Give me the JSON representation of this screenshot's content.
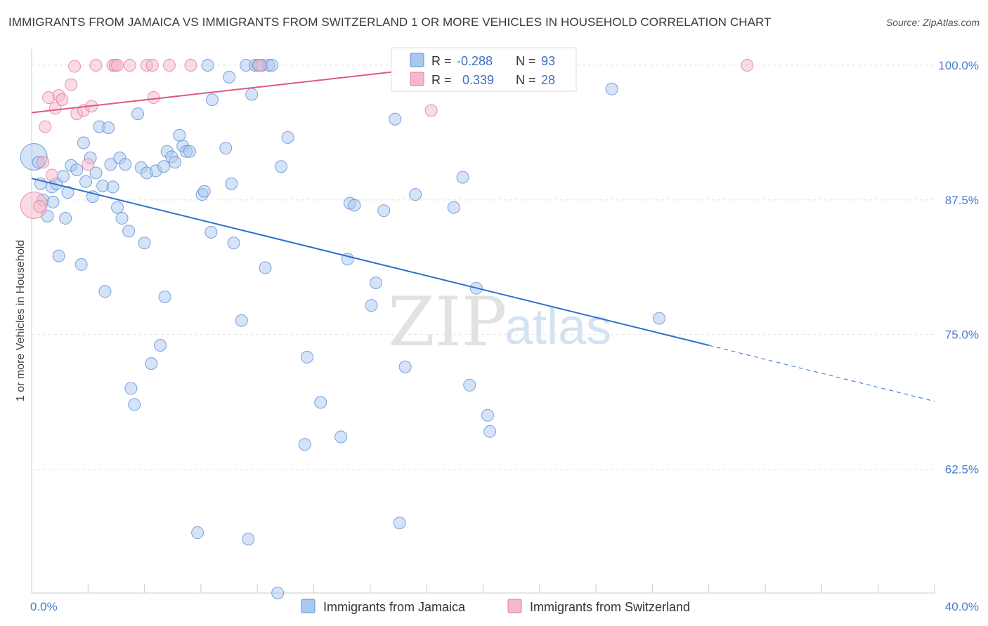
{
  "header": {
    "title": "IMMIGRANTS FROM JAMAICA VS IMMIGRANTS FROM SWITZERLAND 1 OR MORE VEHICLES IN HOUSEHOLD CORRELATION CHART",
    "source": "Source: ZipAtlas.com"
  },
  "watermark": {
    "zip": "ZIP",
    "atlas": "atlas"
  },
  "colors": {
    "jamaica_fill": "#a9c8ee",
    "jamaica_stroke": "#5b8fd6",
    "jamaica_line": "#2f6fcf",
    "swiss_fill": "#f5b8ca",
    "swiss_stroke": "#e07c9c",
    "swiss_line": "#e0588a",
    "tick_text": "#4a7bd0",
    "grid": "#e2e2e2"
  },
  "legend": {
    "row1": {
      "r_label": "R =",
      "r_value": "-0.288",
      "n_label": "N =",
      "n_value": "93"
    },
    "row2": {
      "r_label": "R =",
      "r_value": "0.339",
      "n_label": "N =",
      "n_value": "28"
    }
  },
  "chart_data": {
    "type": "scatter",
    "title": "IMMIGRANTS FROM JAMAICA VS IMMIGRANTS FROM SWITZERLAND 1 OR MORE VEHICLES IN HOUSEHOLD CORRELATION CHART",
    "xlabel": "",
    "ylabel": "1 or more Vehicles in Household",
    "xlim": [
      0,
      40
    ],
    "ylim": [
      51,
      101.5
    ],
    "x_tick_labels": [
      {
        "value": 0,
        "label": "0.0%"
      },
      {
        "value": 40,
        "label": "40.0%"
      }
    ],
    "y_tick_labels": [
      {
        "value": 100,
        "label": "100.0%"
      },
      {
        "value": 87.5,
        "label": "87.5%"
      },
      {
        "value": 75,
        "label": "75.0%"
      },
      {
        "value": 62.5,
        "label": "62.5%"
      }
    ],
    "grid": true,
    "legend_position": "top-center",
    "series": [
      {
        "name": "Immigrants from Jamaica",
        "r": -0.288,
        "n": 93,
        "trend": {
          "x0": 0,
          "y0": 89.5,
          "x1": 30,
          "y1": 74.0,
          "x_dash_end": 40,
          "y_dash_end": 68.8
        },
        "points": [
          {
            "x": 0.1,
            "y": 91.5,
            "big": true
          },
          {
            "x": 0.3,
            "y": 91.0
          },
          {
            "x": 0.4,
            "y": 89.0
          },
          {
            "x": 0.5,
            "y": 87.5
          },
          {
            "x": 0.7,
            "y": 86.0
          },
          {
            "x": 0.9,
            "y": 88.7
          },
          {
            "x": 0.95,
            "y": 87.3
          },
          {
            "x": 1.1,
            "y": 89.0
          },
          {
            "x": 1.2,
            "y": 82.3
          },
          {
            "x": 1.4,
            "y": 89.7
          },
          {
            "x": 1.5,
            "y": 85.8
          },
          {
            "x": 1.6,
            "y": 88.2
          },
          {
            "x": 1.75,
            "y": 90.7
          },
          {
            "x": 2.0,
            "y": 90.3
          },
          {
            "x": 2.2,
            "y": 81.5
          },
          {
            "x": 2.3,
            "y": 92.8
          },
          {
            "x": 2.4,
            "y": 89.2
          },
          {
            "x": 2.6,
            "y": 91.4
          },
          {
            "x": 2.7,
            "y": 87.8
          },
          {
            "x": 2.85,
            "y": 90.0
          },
          {
            "x": 3.0,
            "y": 94.3
          },
          {
            "x": 3.15,
            "y": 88.8
          },
          {
            "x": 3.25,
            "y": 79.0
          },
          {
            "x": 3.4,
            "y": 94.2
          },
          {
            "x": 3.5,
            "y": 90.8
          },
          {
            "x": 3.6,
            "y": 88.7
          },
          {
            "x": 3.8,
            "y": 86.8
          },
          {
            "x": 3.9,
            "y": 91.4
          },
          {
            "x": 4.0,
            "y": 85.8
          },
          {
            "x": 4.15,
            "y": 90.8
          },
          {
            "x": 4.3,
            "y": 84.6
          },
          {
            "x": 4.4,
            "y": 70.0
          },
          {
            "x": 4.55,
            "y": 68.5
          },
          {
            "x": 4.7,
            "y": 95.5
          },
          {
            "x": 4.85,
            "y": 90.5
          },
          {
            "x": 5.0,
            "y": 83.5
          },
          {
            "x": 5.1,
            "y": 90.0
          },
          {
            "x": 5.3,
            "y": 72.3
          },
          {
            "x": 5.5,
            "y": 90.2
          },
          {
            "x": 5.7,
            "y": 74.0
          },
          {
            "x": 5.85,
            "y": 90.6
          },
          {
            "x": 5.9,
            "y": 78.5
          },
          {
            "x": 6.0,
            "y": 92.0
          },
          {
            "x": 6.2,
            "y": 91.5
          },
          {
            "x": 6.35,
            "y": 91.0
          },
          {
            "x": 6.55,
            "y": 93.5
          },
          {
            "x": 6.7,
            "y": 92.5
          },
          {
            "x": 6.85,
            "y": 92.0
          },
          {
            "x": 7.0,
            "y": 92.0
          },
          {
            "x": 7.35,
            "y": 56.6
          },
          {
            "x": 7.55,
            "y": 88.0
          },
          {
            "x": 7.65,
            "y": 88.3
          },
          {
            "x": 7.8,
            "y": 100.0
          },
          {
            "x": 7.95,
            "y": 84.5
          },
          {
            "x": 8.0,
            "y": 96.8
          },
          {
            "x": 8.6,
            "y": 92.3
          },
          {
            "x": 8.75,
            "y": 98.9
          },
          {
            "x": 8.85,
            "y": 89.0
          },
          {
            "x": 8.95,
            "y": 83.5
          },
          {
            "x": 9.3,
            "y": 76.3
          },
          {
            "x": 9.5,
            "y": 100.0
          },
          {
            "x": 9.6,
            "y": 56.0
          },
          {
            "x": 9.75,
            "y": 97.3
          },
          {
            "x": 9.9,
            "y": 100.0
          },
          {
            "x": 10.05,
            "y": 100.0
          },
          {
            "x": 10.2,
            "y": 100.0
          },
          {
            "x": 10.35,
            "y": 81.2
          },
          {
            "x": 10.5,
            "y": 100.0
          },
          {
            "x": 10.65,
            "y": 100.0
          },
          {
            "x": 10.9,
            "y": 51.0
          },
          {
            "x": 11.05,
            "y": 90.6
          },
          {
            "x": 11.35,
            "y": 93.3
          },
          {
            "x": 12.1,
            "y": 64.8
          },
          {
            "x": 12.2,
            "y": 72.9
          },
          {
            "x": 12.8,
            "y": 68.7
          },
          {
            "x": 13.7,
            "y": 65.5
          },
          {
            "x": 14.0,
            "y": 82.0
          },
          {
            "x": 14.1,
            "y": 87.2
          },
          {
            "x": 14.3,
            "y": 87.0
          },
          {
            "x": 15.05,
            "y": 77.7
          },
          {
            "x": 15.25,
            "y": 79.8
          },
          {
            "x": 15.6,
            "y": 86.5
          },
          {
            "x": 16.1,
            "y": 95.0
          },
          {
            "x": 16.3,
            "y": 57.5
          },
          {
            "x": 16.55,
            "y": 72.0
          },
          {
            "x": 17.0,
            "y": 88.0
          },
          {
            "x": 18.7,
            "y": 86.8
          },
          {
            "x": 19.1,
            "y": 89.6
          },
          {
            "x": 19.4,
            "y": 70.3
          },
          {
            "x": 19.7,
            "y": 79.3
          },
          {
            "x": 20.2,
            "y": 67.5
          },
          {
            "x": 20.3,
            "y": 66.0
          },
          {
            "x": 25.7,
            "y": 97.8
          },
          {
            "x": 27.8,
            "y": 76.5
          }
        ]
      },
      {
        "name": "Immigrants from Switzerland",
        "r": 0.339,
        "n": 28,
        "trend": {
          "x0": 0,
          "y0": 95.6,
          "x1": 18.6,
          "y1": 100.0
        },
        "points": [
          {
            "x": 0.1,
            "y": 87.0,
            "big": true
          },
          {
            "x": 0.35,
            "y": 86.9
          },
          {
            "x": 0.5,
            "y": 91.0
          },
          {
            "x": 0.6,
            "y": 94.3
          },
          {
            "x": 0.75,
            "y": 97.0
          },
          {
            "x": 0.9,
            "y": 89.8
          },
          {
            "x": 1.05,
            "y": 96.0
          },
          {
            "x": 1.2,
            "y": 97.2
          },
          {
            "x": 1.35,
            "y": 96.8
          },
          {
            "x": 1.75,
            "y": 98.2
          },
          {
            "x": 1.9,
            "y": 99.9
          },
          {
            "x": 2.0,
            "y": 95.5
          },
          {
            "x": 2.3,
            "y": 95.8
          },
          {
            "x": 2.5,
            "y": 90.8
          },
          {
            "x": 2.65,
            "y": 96.2
          },
          {
            "x": 2.85,
            "y": 100.0
          },
          {
            "x": 3.6,
            "y": 100.0
          },
          {
            "x": 3.7,
            "y": 100.0
          },
          {
            "x": 3.8,
            "y": 100.0
          },
          {
            "x": 4.35,
            "y": 100.0
          },
          {
            "x": 5.1,
            "y": 100.0
          },
          {
            "x": 5.35,
            "y": 100.0
          },
          {
            "x": 5.4,
            "y": 97.0
          },
          {
            "x": 6.1,
            "y": 100.0
          },
          {
            "x": 7.05,
            "y": 100.0
          },
          {
            "x": 10.1,
            "y": 100.0
          },
          {
            "x": 17.7,
            "y": 95.8
          },
          {
            "x": 31.7,
            "y": 100.0
          }
        ]
      }
    ]
  }
}
